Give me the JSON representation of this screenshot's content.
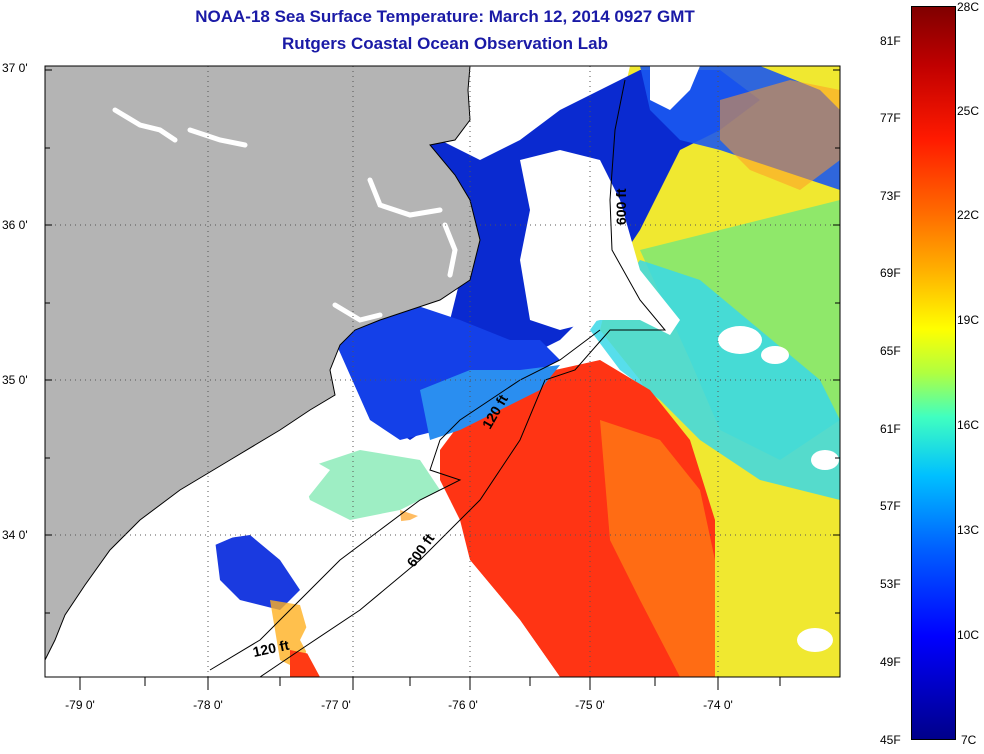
{
  "title": "NOAA-18 Sea Surface Temperature:  March 12, 2014 0927 GMT",
  "subtitle": "Rutgers Coastal Ocean Observation Lab",
  "lat_labels": [
    "37 0'",
    "36 0'",
    "35 0'",
    "34 0'"
  ],
  "lon_labels": [
    "-79 0'",
    "-78 0'",
    "-77 0'",
    "-76 0'",
    "-75 0'",
    "-74 0'"
  ],
  "colorbar": {
    "f_labels": [
      "81F",
      "77F",
      "73F",
      "69F",
      "65F",
      "61F",
      "57F",
      "53F",
      "49F",
      "45F"
    ],
    "c_labels": [
      "28C",
      "25C",
      "22C",
      "19C",
      "16C",
      "13C",
      "10C",
      "7C"
    ]
  },
  "isobaths": [
    "600 ft",
    "120 ft",
    "600 ft",
    "120 ft"
  ],
  "colors": {
    "land": "#b4b4b4",
    "nodata": "#ffffff",
    "cold": "#0a28c8",
    "mid": "#2cc8e8",
    "warm": "#ff3a14",
    "hot": "#ffe21a",
    "title": "#1a1aa6"
  }
}
